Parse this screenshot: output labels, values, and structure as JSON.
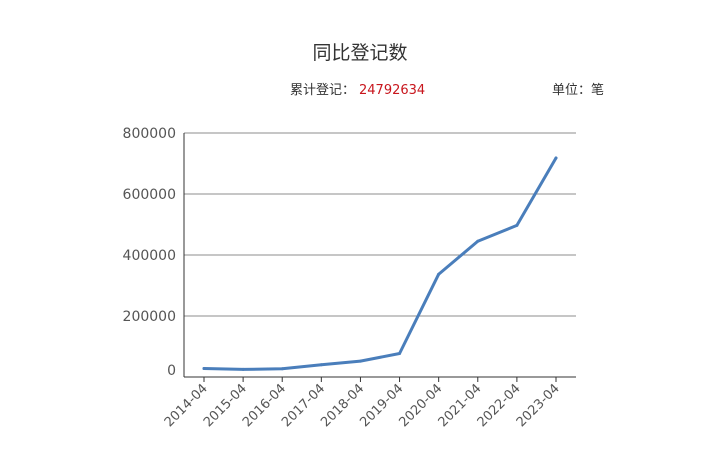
{
  "header": {
    "title": "同比登记数",
    "total_label": "累计登记：",
    "total_value": "24792634",
    "unit_label": "单位：笔"
  },
  "colors": {
    "line": "#4a7ebb",
    "grid": "#8c8c8c",
    "total_value": "#c8161d"
  },
  "chart_data": {
    "type": "line",
    "title": "同比登记数",
    "xlabel": "",
    "ylabel": "",
    "categories": [
      "2014-04",
      "2015-04",
      "2016-04",
      "2017-04",
      "2018-04",
      "2019-04",
      "2020-04",
      "2021-04",
      "2022-04",
      "2023-04"
    ],
    "series": [
      {
        "values": [
          28000,
          25000,
          27000,
          40000,
          52000,
          77000,
          337000,
          445000,
          497000,
          718000
        ]
      }
    ],
    "yticks": [
      0,
      200000,
      400000,
      600000,
      800000
    ],
    "ylim": [
      0,
      800000
    ],
    "grid": true,
    "legend": "none"
  }
}
